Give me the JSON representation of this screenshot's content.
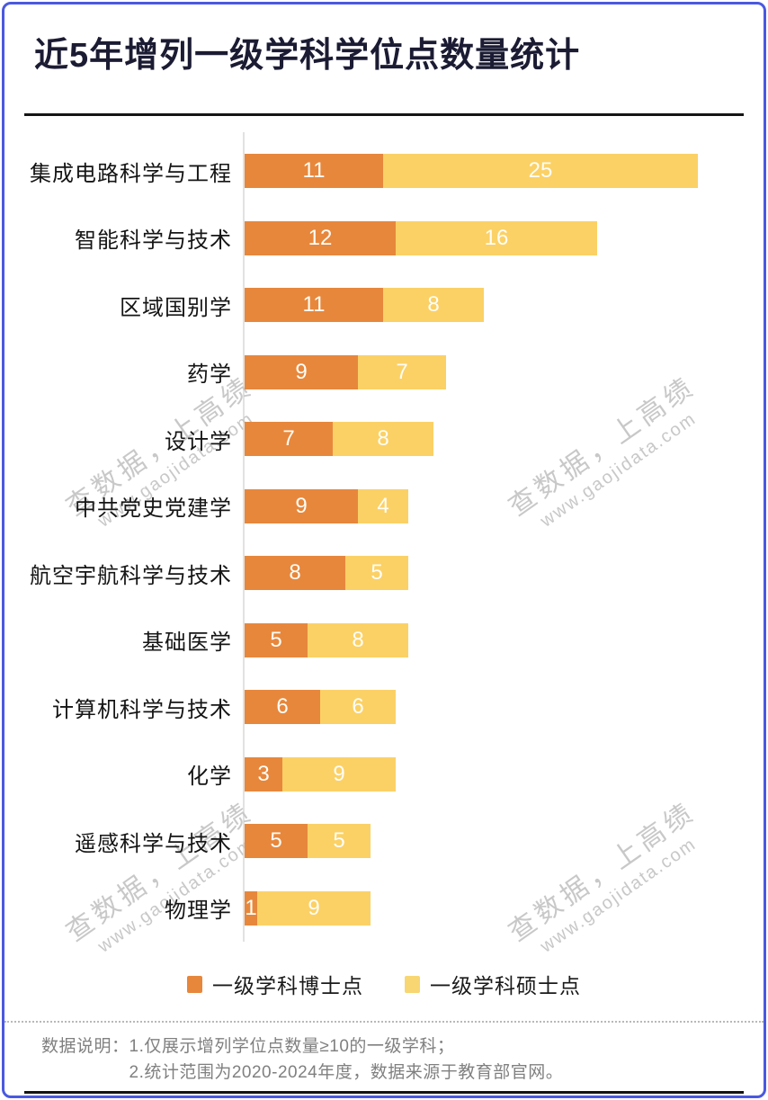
{
  "title": "近5年增列一级学科学位点数量统计",
  "watermark": {
    "line1": "查数据，上高绩",
    "line2": "www.gaojidata.com"
  },
  "colors": {
    "doctor_orange": "#e7873c",
    "master_yellow": "#fbd166",
    "border_blue": "#4a59df",
    "title_navy": "#1b1b33",
    "watermark_gray": "#c8c8c8",
    "footer_gray": "#808080"
  },
  "legend": {
    "items": [
      {
        "label": "一级学科博士点",
        "color": "#e7873c"
      },
      {
        "label": "一级学科硕士点",
        "color": "#f8d672"
      }
    ]
  },
  "footer": {
    "label": "数据说明：",
    "notes": [
      "1.仅展示增列学位点数量≥10的一级学科；",
      "2.统计范围为2020-2024年度，数据来源于教育部官网。"
    ]
  },
  "chart_data": {
    "type": "bar",
    "orientation": "horizontal",
    "stacked": true,
    "title": "近5年增列一级学科学位点数量统计",
    "categories": [
      "集成电路科学与工程",
      "智能科学与技术",
      "区域国别学",
      "药学",
      "设计学",
      "中共党史党建学",
      "航空宇航科学与技术",
      "基础医学",
      "计算机科学与技术",
      "化学",
      "遥感科学与技术",
      "物理学"
    ],
    "series": [
      {
        "name": "一级学科博士点",
        "color": "#e7873c",
        "values": [
          11,
          12,
          11,
          9,
          7,
          9,
          8,
          5,
          6,
          3,
          5,
          1
        ]
      },
      {
        "name": "一级学科硕士点",
        "color": "#fbd166",
        "values": [
          25,
          16,
          8,
          7,
          8,
          4,
          5,
          8,
          6,
          9,
          5,
          9
        ]
      }
    ],
    "totals": [
      36,
      28,
      19,
      16,
      15,
      13,
      13,
      13,
      12,
      12,
      10,
      10
    ],
    "value_labels": "inside, white",
    "x_axis": {
      "min": 0,
      "max": 36,
      "ticks_visible": false,
      "gridlines": false
    },
    "legend_position": "bottom"
  }
}
